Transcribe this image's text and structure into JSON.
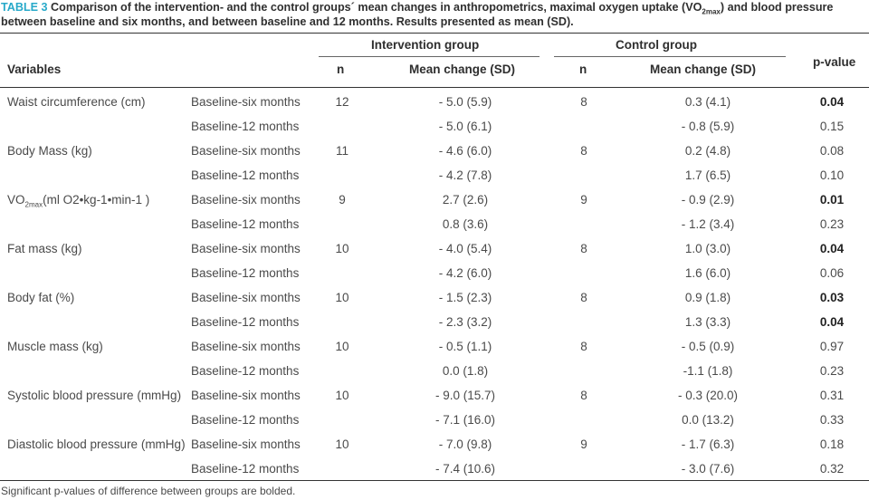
{
  "caption": {
    "label": "TABLE 3",
    "text_before": "Comparison of the intervention- and the control groups´ mean changes in anthropometrics, maximal oxygen uptake (VO",
    "sub": "2max",
    "text_after": ") and blood pressure between baseline and six months, and between baseline and 12 months. Results presented as mean (SD)."
  },
  "headers": {
    "variables": "Variables",
    "intervention_group": "Intervention group",
    "control_group": "Control group",
    "n": "n",
    "mean_change": "Mean change (SD)",
    "p_value": "p-value"
  },
  "rows": [
    {
      "variable": "Waist circumference (cm)",
      "period": "Baseline-six months",
      "n_int": "12",
      "int": "- 5.0 (5.9)",
      "n_ctrl": "8",
      "ctrl": "0.3 (4.1)",
      "p": "0.04",
      "bold": true
    },
    {
      "variable": "",
      "period": "Baseline-12 months",
      "n_int": "",
      "int": "- 5.0 (6.1)",
      "n_ctrl": "",
      "ctrl": "- 0.8 (5.9)",
      "p": "0.15",
      "bold": false
    },
    {
      "variable": "Body Mass (kg)",
      "period": "Baseline-six months",
      "n_int": "11",
      "int": "- 4.6 (6.0)",
      "n_ctrl": "8",
      "ctrl": "0.2 (4.8)",
      "p": "0.08",
      "bold": false
    },
    {
      "variable": "",
      "period": "Baseline-12 months",
      "n_int": "",
      "int": "- 4.2 (7.8)",
      "n_ctrl": "",
      "ctrl": "1.7 (6.5)",
      "p": "0.10",
      "bold": false
    },
    {
      "variable": "VO",
      "variable_sub": "2max",
      "variable_rest": "(ml O2•kg-1•min-1 )",
      "period": "Baseline-six months",
      "n_int": "9",
      "int": "2.7 (2.6)",
      "n_ctrl": "9",
      "ctrl": "- 0.9 (2.9)",
      "p": "0.01",
      "bold": true
    },
    {
      "variable": "",
      "period": "Baseline-12 months",
      "n_int": "",
      "int": "0.8 (3.6)",
      "n_ctrl": "",
      "ctrl": "- 1.2 (3.4)",
      "p": "0.23",
      "bold": false
    },
    {
      "variable": "Fat mass (kg)",
      "period": "Baseline-six months",
      "n_int": "10",
      "int": "- 4.0 (5.4)",
      "n_ctrl": "8",
      "ctrl": "1.0 (3.0)",
      "p": "0.04",
      "bold": true
    },
    {
      "variable": "",
      "period": "Baseline-12 months",
      "n_int": "",
      "int": "- 4.2 (6.0)",
      "n_ctrl": "",
      "ctrl": "1.6 (6.0)",
      "p": "0.06",
      "bold": false
    },
    {
      "variable": "Body fat (%)",
      "period": "Baseline-six months",
      "n_int": "10",
      "int": "- 1.5 (2.3)",
      "n_ctrl": "8",
      "ctrl": "0.9 (1.8)",
      "p": "0.03",
      "bold": true
    },
    {
      "variable": "",
      "period": "Baseline-12 months",
      "n_int": "",
      "int": "- 2.3 (3.2)",
      "n_ctrl": "",
      "ctrl": "1.3 (3.3)",
      "p": "0.04",
      "bold": true
    },
    {
      "variable": "Muscle mass (kg)",
      "period": "Baseline-six months",
      "n_int": "10",
      "int": "- 0.5 (1.1)",
      "n_ctrl": "8",
      "ctrl": "- 0.5 (0.9)",
      "p": "0.97",
      "bold": false
    },
    {
      "variable": "",
      "period": "Baseline-12 months",
      "n_int": "",
      "int": "0.0 (1.8)",
      "n_ctrl": "",
      "ctrl": "-1.1 (1.8)",
      "p": "0.23",
      "bold": false
    },
    {
      "variable": "Systolic blood pressure (mmHg)",
      "period": "Baseline-six months",
      "n_int": "10",
      "int": "- 9.0 (15.7)",
      "n_ctrl": "8",
      "ctrl": "- 0.3 (20.0)",
      "p": "0.31",
      "bold": false
    },
    {
      "variable": "",
      "period": "Baseline-12 months",
      "n_int": "",
      "int": "- 7.1 (16.0)",
      "n_ctrl": "",
      "ctrl": "0.0 (13.2)",
      "p": "0.33",
      "bold": false
    },
    {
      "variable": "Diastolic blood pressure (mmHg)",
      "period": "Baseline-six months",
      "n_int": "10",
      "int": "- 7.0 (9.8)",
      "n_ctrl": "9",
      "ctrl": "- 1.7 (6.3)",
      "p": "0.18",
      "bold": false
    },
    {
      "variable": "",
      "period": "Baseline-12 months",
      "n_int": "",
      "int": "- 7.4 (10.6)",
      "n_ctrl": "",
      "ctrl": "- 3.0 (7.6)",
      "p": "0.32",
      "bold": false
    }
  ],
  "footnote": "Significant p-values of difference between groups are bolded."
}
